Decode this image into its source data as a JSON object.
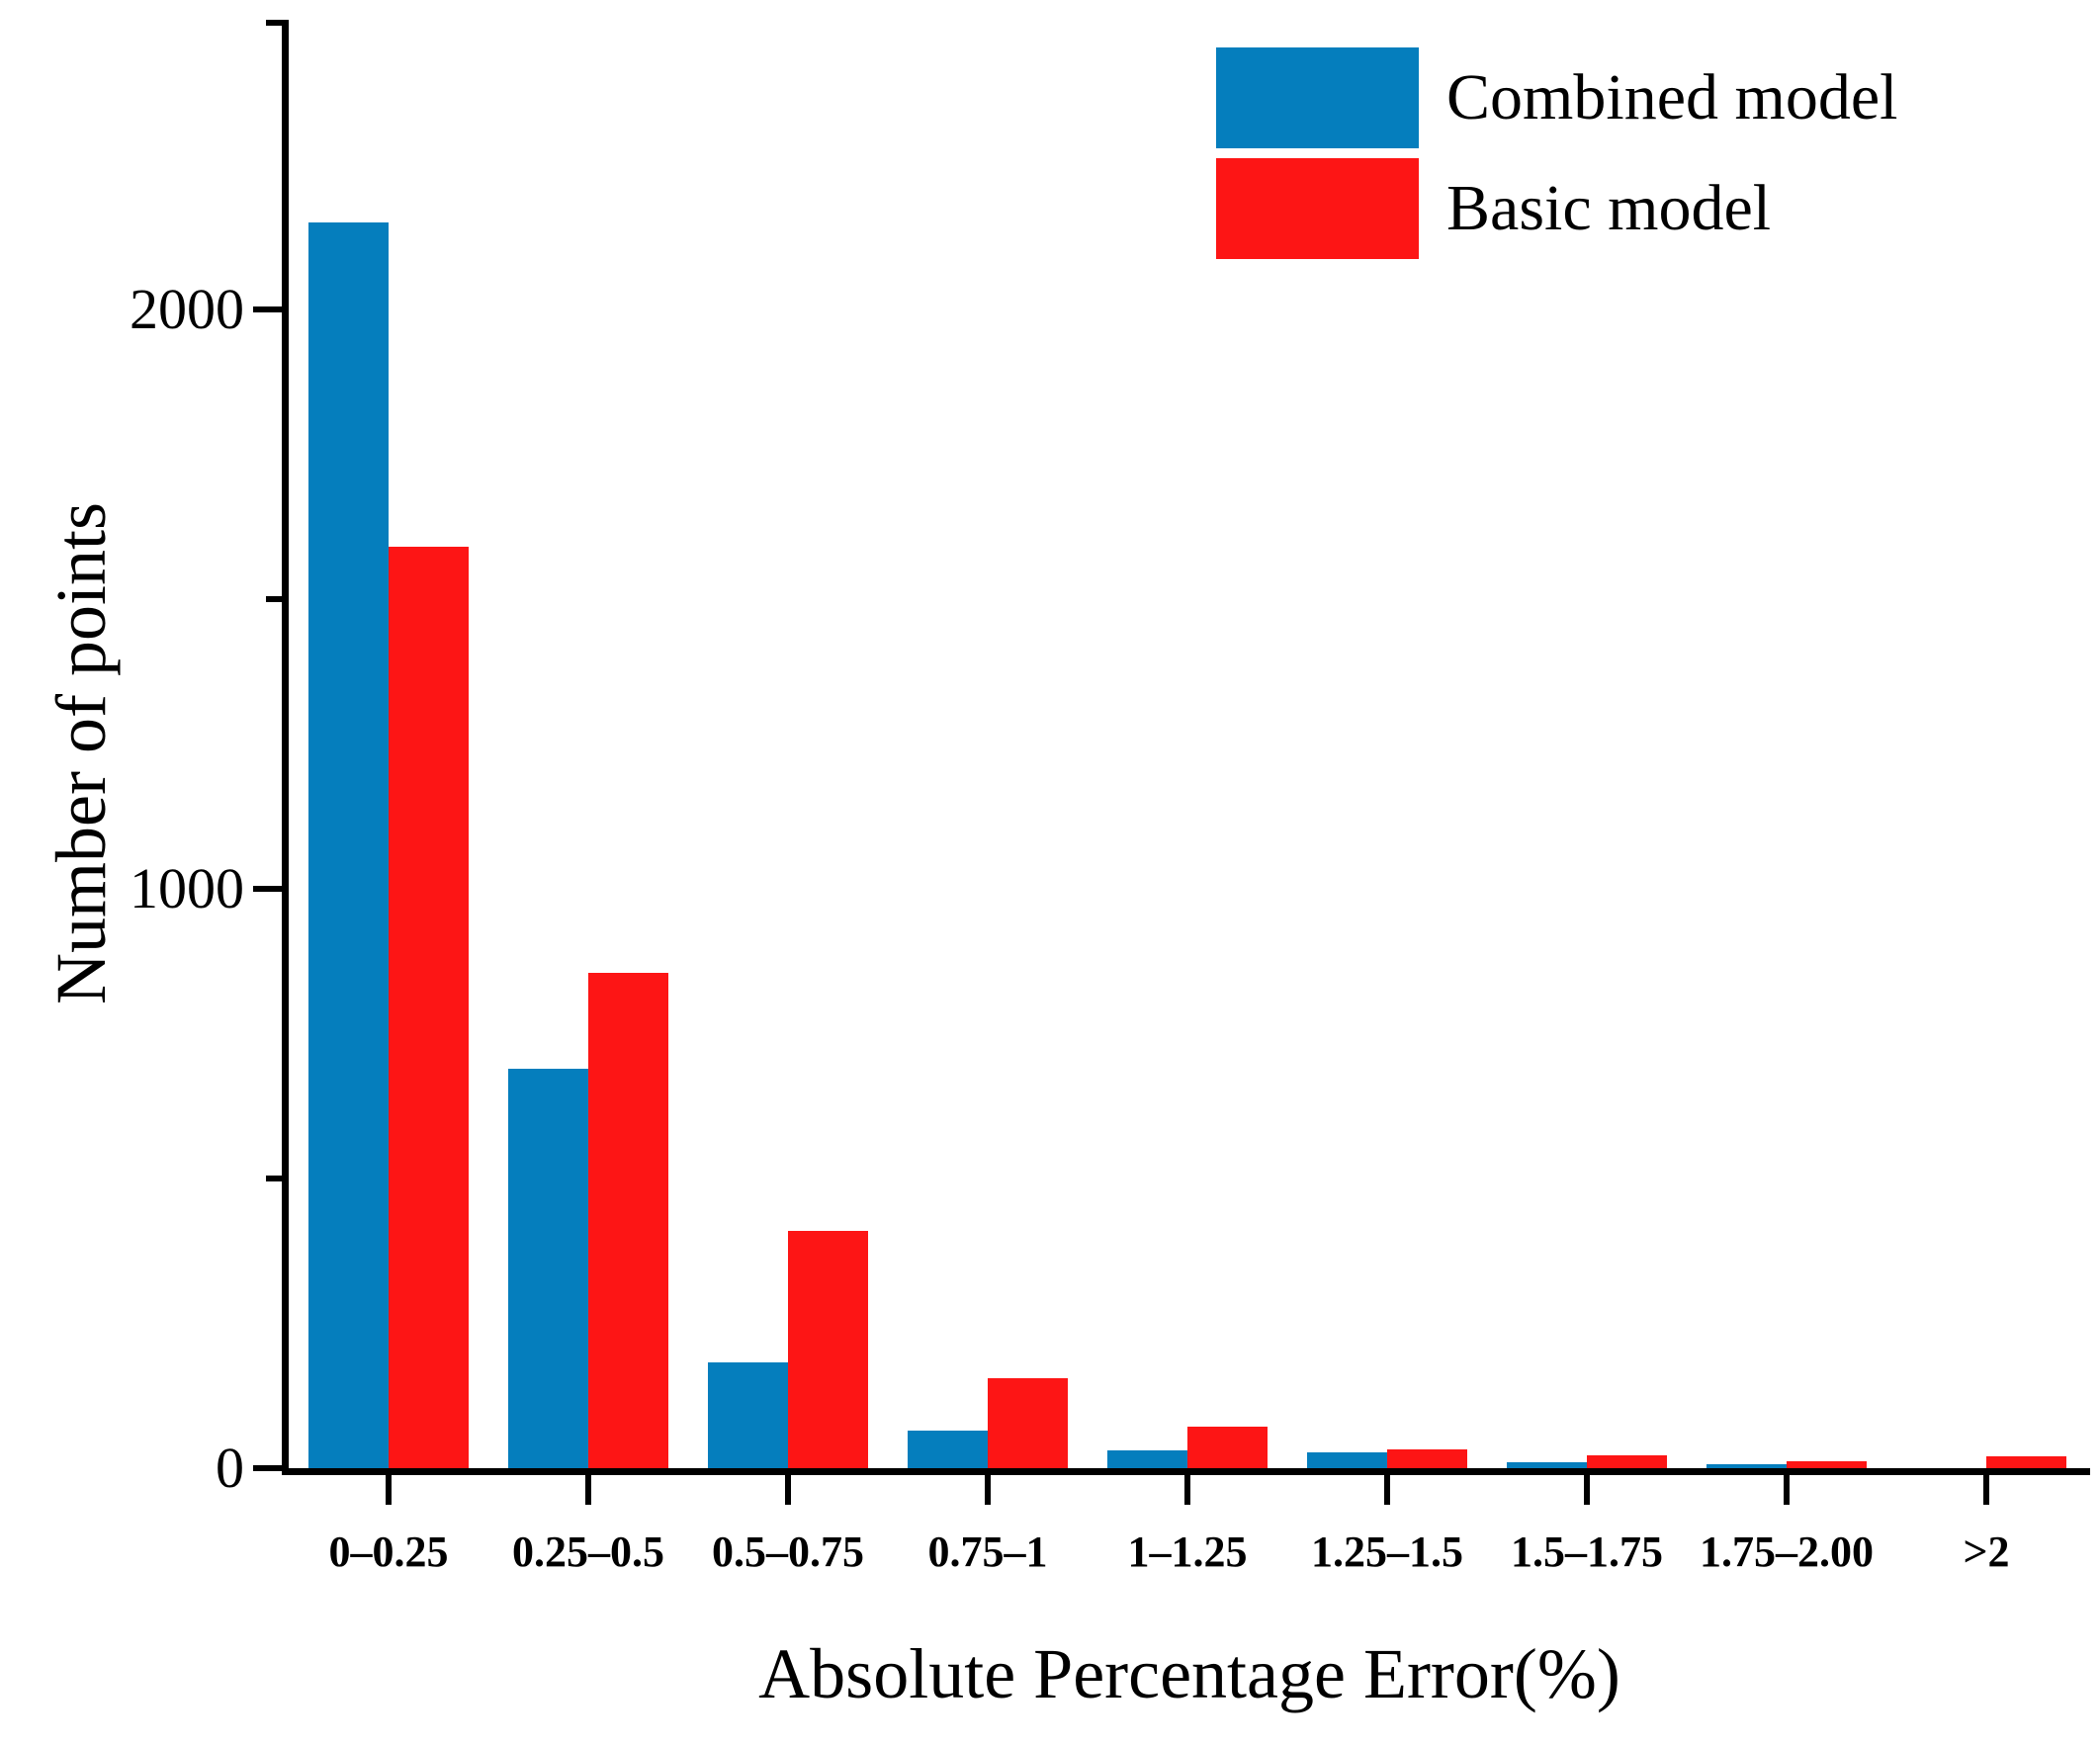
{
  "chart_data": {
    "type": "bar",
    "title": "",
    "xlabel": "Absolute Percentage Error(%)",
    "ylabel": "Number of points",
    "categories": [
      "0–0.25",
      "0.25–0.5",
      "0.5–0.75",
      "0.75–1",
      "1–1.25",
      "1.25–1.5",
      "1.5–1.75",
      "1.75–2.00",
      ">2"
    ],
    "series": [
      {
        "name": "Combined model",
        "color": "#057ebd",
        "values": [
          2150,
          690,
          183,
          65,
          30,
          28,
          10,
          7,
          0
        ]
      },
      {
        "name": "Basic model",
        "color": "#fd1515",
        "values": [
          1590,
          855,
          410,
          155,
          72,
          32,
          22,
          12,
          20
        ]
      }
    ],
    "ylim": [
      0,
      2500
    ],
    "y_major_ticks": [
      0,
      1000,
      2000
    ],
    "y_minor_ticks": [
      500,
      1500,
      2500
    ],
    "grid": false,
    "legend_position": "top-right"
  }
}
